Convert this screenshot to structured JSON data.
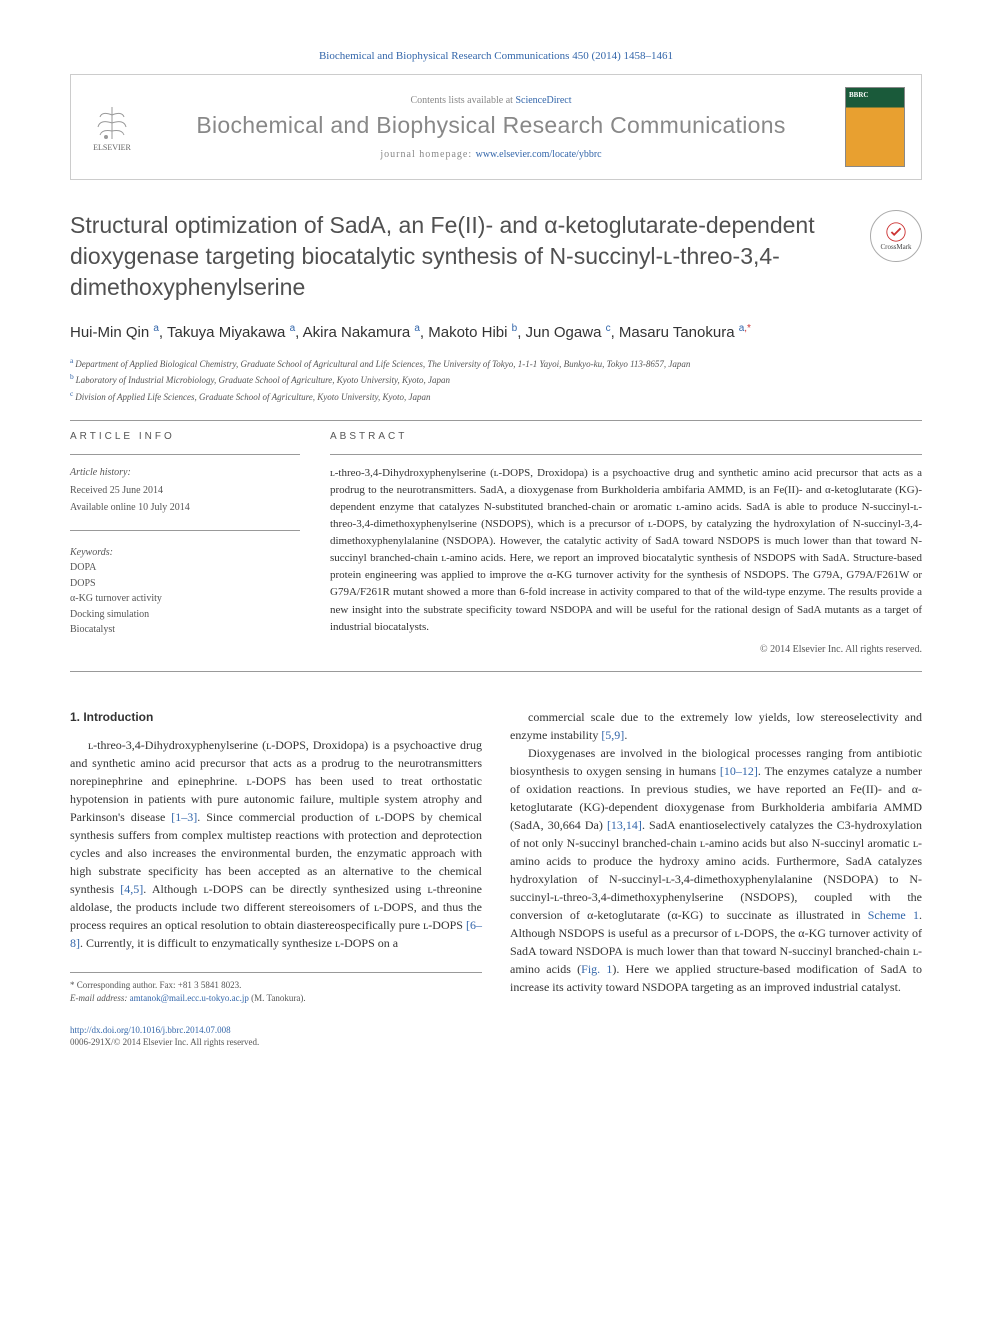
{
  "header": {
    "citation": "Biochemical and Biophysical Research Communications 450 (2014) 1458–1461",
    "contents_lists": "Contents lists available at ",
    "cll_link": "ScienceDirect",
    "journal_name": "Biochemical and Biophysical Research Communications",
    "homepage_prefix": "journal homepage: ",
    "homepage_url": "www.elsevier.com/locate/ybbrc",
    "elsevier": "ELSEVIER",
    "crossmark": "CrossMark"
  },
  "article": {
    "title": "Structural optimization of SadA, an Fe(II)- and α-ketoglutarate-dependent dioxygenase targeting biocatalytic synthesis of N-succinyl-ʟ-threo-3,4-dimethoxyphenylserine",
    "authors_html": "Hui-Min Qin|a|, Takuya Miyakawa|a|, Akira Nakamura|a|, Makoto Hibi|b|, Jun Ogawa|c|, Masaru Tanokura|a,*|",
    "authors": [
      {
        "name": "Hui-Min Qin",
        "aff": "a"
      },
      {
        "name": "Takuya Miyakawa",
        "aff": "a"
      },
      {
        "name": "Akira Nakamura",
        "aff": "a"
      },
      {
        "name": "Makoto Hibi",
        "aff": "b"
      },
      {
        "name": "Jun Ogawa",
        "aff": "c"
      },
      {
        "name": "Masaru Tanokura",
        "aff": "a",
        "corr": true
      }
    ],
    "affiliations": [
      {
        "key": "a",
        "text": "Department of Applied Biological Chemistry, Graduate School of Agricultural and Life Sciences, The University of Tokyo, 1-1-1 Yayoi, Bunkyo-ku, Tokyo 113-8657, Japan"
      },
      {
        "key": "b",
        "text": "Laboratory of Industrial Microbiology, Graduate School of Agriculture, Kyoto University, Kyoto, Japan"
      },
      {
        "key": "c",
        "text": "Division of Applied Life Sciences, Graduate School of Agriculture, Kyoto University, Kyoto, Japan"
      }
    ]
  },
  "info": {
    "article_info_label": "ARTICLE INFO",
    "abstract_label": "ABSTRACT",
    "history_label": "Article history:",
    "received": "Received 25 June 2014",
    "online": "Available online 10 July 2014",
    "keywords_label": "Keywords:",
    "keywords": [
      "DOPA",
      "DOPS",
      "α-KG turnover activity",
      "Docking simulation",
      "Biocatalyst"
    ]
  },
  "abstract": {
    "text": "ʟ-threo-3,4-Dihydroxyphenylserine (ʟ-DOPS, Droxidopa) is a psychoactive drug and synthetic amino acid precursor that acts as a prodrug to the neurotransmitters. SadA, a dioxygenase from Burkholderia ambifaria AMMD, is an Fe(II)- and α-ketoglutarate (KG)-dependent enzyme that catalyzes N-substituted branched-chain or aromatic ʟ-amino acids. SadA is able to produce N-succinyl-ʟ-threo-3,4-dimethoxyphenylserine (NSDOPS), which is a precursor of ʟ-DOPS, by catalyzing the hydroxylation of N-succinyl-3,4-dimethoxyphenylalanine (NSDOPA). However, the catalytic activity of SadA toward NSDOPS is much lower than that toward N-succinyl branched-chain ʟ-amino acids. Here, we report an improved biocatalytic synthesis of NSDOPS with SadA. Structure-based protein engineering was applied to improve the α-KG turnover activity for the synthesis of NSDOPS. The G79A, G79A/F261W or G79A/F261R mutant showed a more than 6-fold increase in activity compared to that of the wild-type enzyme. The results provide a new insight into the substrate specificity toward NSDOPA and will be useful for the rational design of SadA mutants as a target of industrial biocatalysts.",
    "copyright": "© 2014 Elsevier Inc. All rights reserved."
  },
  "body": {
    "section1_title": "1. Introduction",
    "para1": "ʟ-threo-3,4-Dihydroxyphenylserine (ʟ-DOPS, Droxidopa) is a psychoactive drug and synthetic amino acid precursor that acts as a prodrug to the neurotransmitters norepinephrine and epinephrine. ʟ-DOPS has been used to treat orthostatic hypotension in patients with pure autonomic failure, multiple system atrophy and Parkinson's disease [1–3]. Since commercial production of ʟ-DOPS by chemical synthesis suffers from complex multistep reactions with protection and deprotection cycles and also increases the environmental burden, the enzymatic approach with high substrate specificity has been accepted as an alternative to the chemical synthesis [4,5]. Although ʟ-DOPS can be directly synthesized using ʟ-threonine aldolase, the products include two different stereoisomers of ʟ-DOPS, and thus the process requires an optical resolution to obtain diastereospecifically pure ʟ-DOPS [6–8]. Currently, it is difficult to enzymatically synthesize ʟ-DOPS on a",
    "para2": "commercial scale due to the extremely low yields, low stereoselectivity and enzyme instability [5,9].",
    "para3": "Dioxygenases are involved in the biological processes ranging from antibiotic biosynthesis to oxygen sensing in humans [10–12]. The enzymes catalyze a number of oxidation reactions. In previous studies, we have reported an Fe(II)- and α-ketoglutarate (KG)-dependent dioxygenase from Burkholderia ambifaria AMMD (SadA, 30,664 Da) [13,14]. SadA enantioselectively catalyzes the C3-hydroxylation of not only N-succinyl branched-chain ʟ-amino acids but also N-succinyl aromatic ʟ-amino acids to produce the hydroxy amino acids. Furthermore, SadA catalyzes hydroxylation of N-succinyl-ʟ-3,4-dimethoxyphenylalanine (NSDOPA) to N-succinyl-ʟ-threo-3,4-dimethoxyphenylserine (NSDOPS), coupled with the conversion of α-ketoglutarate (α-KG) to succinate as illustrated in Scheme 1. Although NSDOPS is useful as a precursor of ʟ-DOPS, the α-KG turnover activity of SadA toward NSDOPA is much lower than that toward N-succinyl branched-chain ʟ-amino acids (Fig. 1). Here we applied structure-based modification of SadA to increase its activity toward NSDOPA targeting as an improved industrial catalyst.",
    "refs": {
      "r1": "[1–3]",
      "r2": "[4,5]",
      "r3": "[6–8]",
      "r4": "[5,9]",
      "r5": "[10–12]",
      "r6": "[13,14]",
      "scheme": "Scheme 1",
      "fig": "Fig. 1"
    }
  },
  "footnote": {
    "corr_label": "* Corresponding author. Fax: +81 3 5841 8023.",
    "email_label": "E-mail address: ",
    "email": "amtanok@mail.ecc.u-tokyo.ac.jp",
    "email_suffix": " (M. Tanokura)."
  },
  "footer": {
    "doi": "http://dx.doi.org/10.1016/j.bbrc.2014.07.008",
    "issn": "0006-291X/© 2014 Elsevier Inc. All rights reserved."
  },
  "style": {
    "link_color": "#3366aa",
    "text_color": "#333333",
    "muted_color": "#888888",
    "title_fontsize": 23,
    "body_fontsize": 12,
    "abstract_fontsize": 11
  }
}
